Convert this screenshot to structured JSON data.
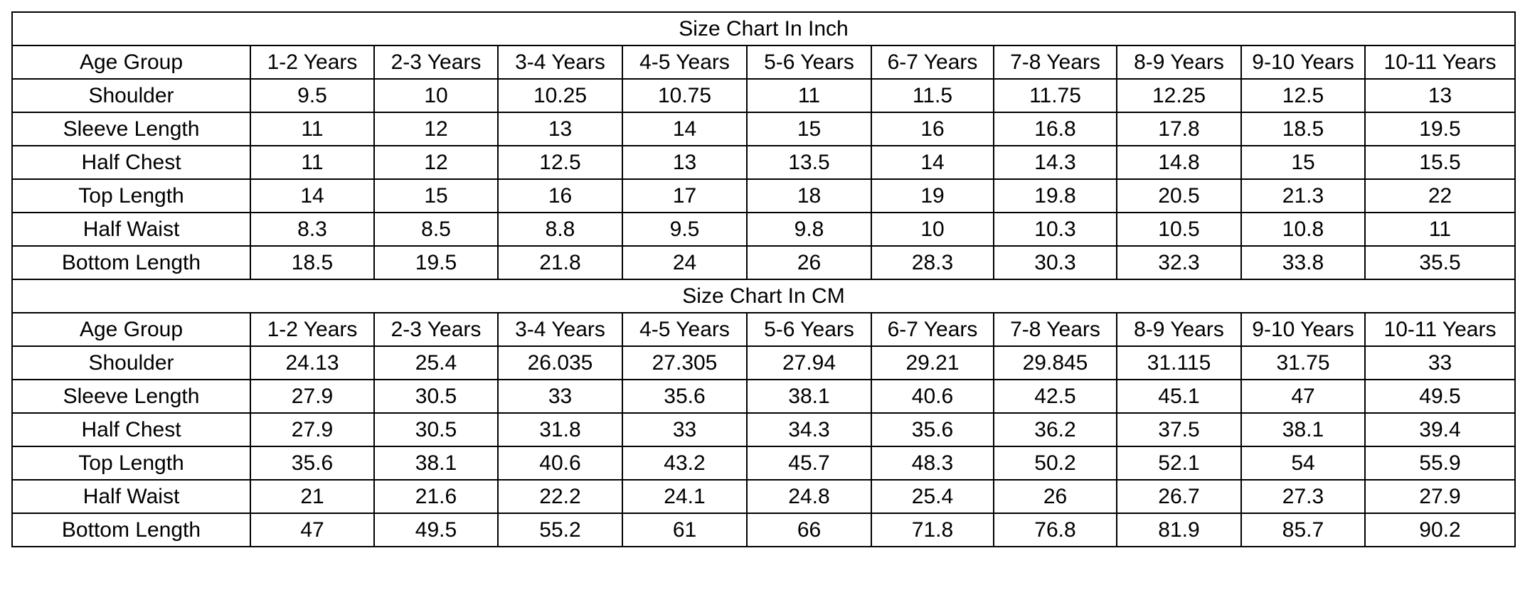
{
  "sections": [
    {
      "title": "Size Chart In Inch",
      "header": [
        "Age Group",
        "1-2 Years",
        "2-3 Years",
        "3-4 Years",
        "4-5 Years",
        "5-6 Years",
        "6-7 Years",
        "7-8 Years",
        "8-9 Years",
        "9-10 Years",
        "10-11 Years"
      ],
      "rows": [
        [
          "Shoulder",
          9.5,
          10,
          10.25,
          10.75,
          11,
          11.5,
          11.75,
          12.25,
          12.5,
          13
        ],
        [
          "Sleeve Length",
          11,
          12,
          13,
          14,
          15,
          16,
          16.8,
          17.8,
          18.5,
          19.5
        ],
        [
          "Half Chest",
          11,
          12,
          12.5,
          13,
          13.5,
          14,
          14.3,
          14.8,
          15,
          15.5
        ],
        [
          "Top Length",
          14,
          15,
          16,
          17,
          18,
          19,
          19.8,
          20.5,
          21.3,
          22
        ],
        [
          "Half Waist",
          8.3,
          8.5,
          8.8,
          9.5,
          9.8,
          10,
          10.3,
          10.5,
          10.8,
          11
        ],
        [
          "Bottom Length",
          18.5,
          19.5,
          21.8,
          24,
          26,
          28.3,
          30.3,
          32.3,
          33.8,
          35.5
        ]
      ]
    },
    {
      "title": "Size Chart In CM",
      "header": [
        "Age Group",
        "1-2 Years",
        "2-3 Years",
        "3-4 Years",
        "4-5 Years",
        "5-6 Years",
        "6-7 Years",
        "7-8 Years",
        "8-9 Years",
        "9-10 Years",
        "10-11 Years"
      ],
      "rows": [
        [
          "Shoulder",
          24.13,
          25.4,
          26.035,
          27.305,
          27.94,
          29.21,
          29.845,
          31.115,
          31.75,
          33
        ],
        [
          "Sleeve Length",
          27.9,
          30.5,
          33,
          35.6,
          38.1,
          40.6,
          42.5,
          45.1,
          47,
          49.5
        ],
        [
          "Half Chest",
          27.9,
          30.5,
          31.8,
          33,
          34.3,
          35.6,
          36.2,
          37.5,
          38.1,
          39.4
        ],
        [
          "Top Length",
          35.6,
          38.1,
          40.6,
          43.2,
          45.7,
          48.3,
          50.2,
          52.1,
          54,
          55.9
        ],
        [
          "Half Waist",
          21,
          21.6,
          22.2,
          24.1,
          24.8,
          25.4,
          26,
          26.7,
          27.3,
          27.9
        ],
        [
          "Bottom Length",
          47,
          49.5,
          55.2,
          61,
          66,
          71.8,
          76.8,
          81.9,
          85.7,
          90.2
        ]
      ]
    }
  ]
}
